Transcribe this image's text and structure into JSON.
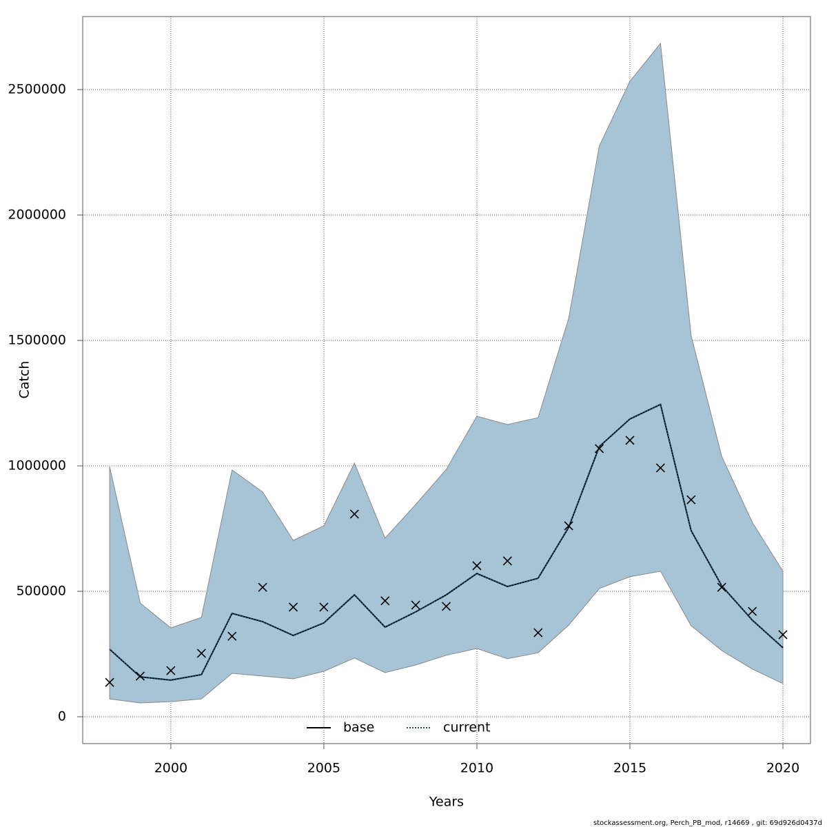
{
  "chart_data": {
    "type": "line",
    "xlabel": "Years",
    "ylabel": "Catch",
    "footer": "stockassessment.org, Perch_PB_mod, r14669 , git: 69d926d0437d",
    "x": [
      1998,
      1999,
      2000,
      2001,
      2002,
      2003,
      2004,
      2005,
      2006,
      2007,
      2008,
      2009,
      2010,
      2011,
      2012,
      2013,
      2014,
      2015,
      2016,
      2017,
      2018,
      2019,
      2020
    ],
    "band": {
      "color": "#a6c4d5",
      "upper": [
        997000,
        453000,
        354000,
        396000,
        984000,
        896000,
        703000,
        761000,
        1011000,
        712000,
        846000,
        986000,
        1198000,
        1165000,
        1192000,
        1588000,
        2275000,
        2533000,
        2684000,
        1519000,
        1038000,
        775000,
        580000
      ],
      "lower": [
        71000,
        55000,
        60000,
        71000,
        173000,
        162000,
        151000,
        181000,
        234000,
        176000,
        206000,
        245000,
        272000,
        231000,
        255000,
        365000,
        511000,
        558000,
        580000,
        363000,
        264000,
        190000,
        132000
      ]
    },
    "series": [
      {
        "name": "base",
        "color": "#000000",
        "dash": "solid",
        "values": [
          269000,
          159000,
          146000,
          168000,
          412000,
          379000,
          324000,
          374000,
          486000,
          357000,
          418000,
          486000,
          571000,
          519000,
          552000,
          755000,
          1077000,
          1187000,
          1245000,
          742000,
          522000,
          385000,
          275000
        ]
      },
      {
        "name": "current",
        "color": "#1a4f78",
        "dash": "dotted",
        "values": [
          269000,
          159000,
          146000,
          168000,
          412000,
          379000,
          324000,
          374000,
          486000,
          357000,
          418000,
          486000,
          571000,
          519000,
          552000,
          755000,
          1077000,
          1187000,
          1245000,
          742000,
          522000,
          385000,
          275000
        ]
      }
    ],
    "observed": {
      "marker": "x",
      "color": "#000000",
      "values": [
        137000,
        162000,
        184000,
        253000,
        321000,
        516000,
        437000,
        437000,
        808000,
        462000,
        445000,
        440000,
        602000,
        621000,
        335000,
        761000,
        1069000,
        1102000,
        992000,
        865000,
        516000,
        420000,
        327000
      ]
    },
    "xlim": [
      1997.12,
      2020.9
    ],
    "ylim": [
      -107143,
      2791209
    ],
    "xticks": [
      2000,
      2005,
      2010,
      2015,
      2020
    ],
    "yticks": [
      0,
      500000,
      1000000,
      1500000,
      2000000,
      2500000
    ],
    "grid": true,
    "legend": "bottom"
  }
}
